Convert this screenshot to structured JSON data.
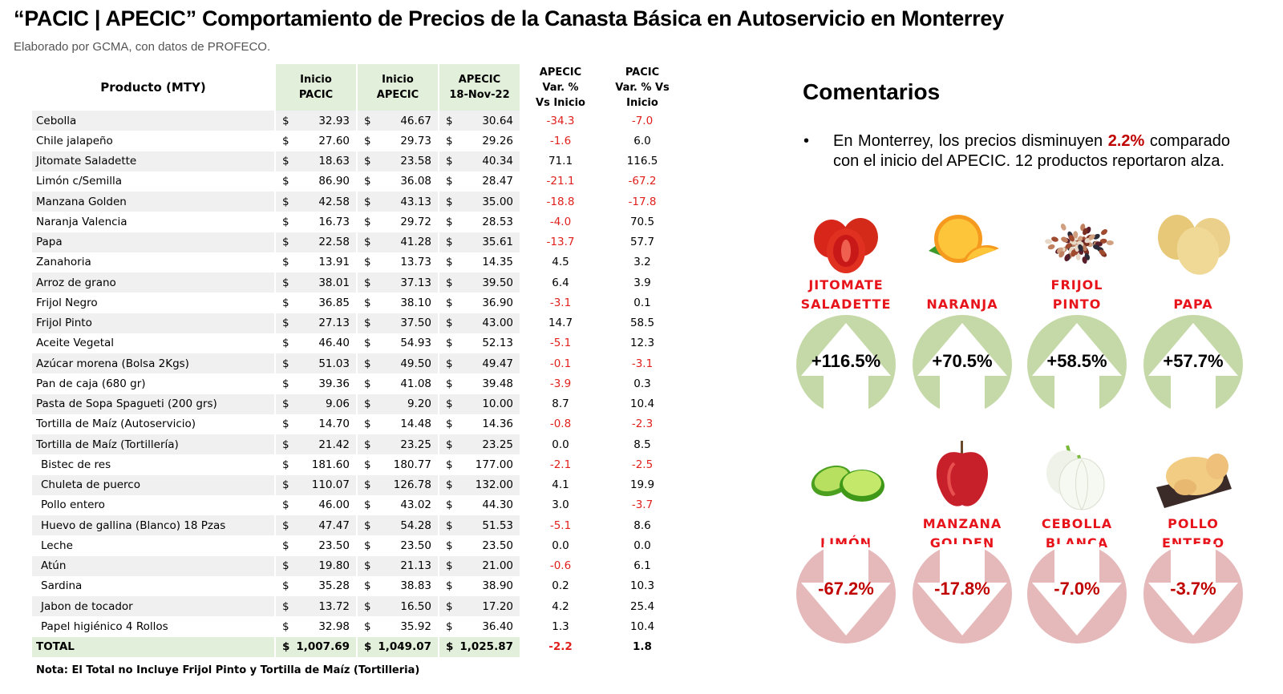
{
  "header": {
    "title": "“PACIC | APECIC” Comportamiento de Precios de la Canasta Básica en Autoservicio en Monterrey",
    "subtitle": "Elaborado por GCMA, con datos de PROFECO."
  },
  "table": {
    "columns": {
      "product": "Producto (MTY)",
      "inicio_pacic": [
        "Inicio",
        "PACIC"
      ],
      "inicio_apecic": [
        "Inicio",
        "APECIC"
      ],
      "apecic_date": [
        "APECIC",
        "18-Nov-22"
      ],
      "var_apecic": [
        "APECIC",
        "Var. %",
        "Vs  Inicio"
      ],
      "var_pacic": [
        "PACIC",
        "Var. % Vs",
        "Inicio"
      ]
    },
    "currency": "$",
    "rows": [
      {
        "name": "Cebolla",
        "pacic": "32.93",
        "apecic": "46.67",
        "nov": "30.64",
        "var_apecic": "-34.3",
        "var_pacic": "-7.0"
      },
      {
        "name": "Chile jalapeño",
        "pacic": "27.60",
        "apecic": "29.73",
        "nov": "29.26",
        "var_apecic": "-1.6",
        "var_pacic": "6.0"
      },
      {
        "name": "Jitomate Saladette",
        "pacic": "18.63",
        "apecic": "23.58",
        "nov": "40.34",
        "var_apecic": "71.1",
        "var_pacic": "116.5"
      },
      {
        "name": "Limón c/Semilla",
        "pacic": "86.90",
        "apecic": "36.08",
        "nov": "28.47",
        "var_apecic": "-21.1",
        "var_pacic": "-67.2"
      },
      {
        "name": "Manzana Golden",
        "pacic": "42.58",
        "apecic": "43.13",
        "nov": "35.00",
        "var_apecic": "-18.8",
        "var_pacic": "-17.8"
      },
      {
        "name": "Naranja Valencia",
        "pacic": "16.73",
        "apecic": "29.72",
        "nov": "28.53",
        "var_apecic": "-4.0",
        "var_pacic": "70.5"
      },
      {
        "name": "Papa",
        "pacic": "22.58",
        "apecic": "41.28",
        "nov": "35.61",
        "var_apecic": "-13.7",
        "var_pacic": "57.7"
      },
      {
        "name": "Zanahoria",
        "pacic": "13.91",
        "apecic": "13.73",
        "nov": "14.35",
        "var_apecic": "4.5",
        "var_pacic": "3.2"
      },
      {
        "name": "Arroz de grano",
        "pacic": "38.01",
        "apecic": "37.13",
        "nov": "39.50",
        "var_apecic": "6.4",
        "var_pacic": "3.9"
      },
      {
        "name": "Frijol Negro",
        "pacic": "36.85",
        "apecic": "38.10",
        "nov": "36.90",
        "var_apecic": "-3.1",
        "var_pacic": "0.1"
      },
      {
        "name": "Frijol Pinto",
        "pacic": "27.13",
        "apecic": "37.50",
        "nov": "43.00",
        "var_apecic": "14.7",
        "var_pacic": "58.5"
      },
      {
        "name": "Aceite Vegetal",
        "pacic": "46.40",
        "apecic": "54.93",
        "nov": "52.13",
        "var_apecic": "-5.1",
        "var_pacic": "12.3"
      },
      {
        "name": "Azúcar morena (Bolsa 2Kgs)",
        "pacic": "51.03",
        "apecic": "49.50",
        "nov": "49.47",
        "var_apecic": "-0.1",
        "var_pacic": "-3.1"
      },
      {
        "name": "Pan de caja (680 gr)",
        "pacic": "39.36",
        "apecic": "41.08",
        "nov": "39.48",
        "var_apecic": "-3.9",
        "var_pacic": "0.3"
      },
      {
        "name": "Pasta de Sopa Spagueti (200 grs)",
        "pacic": "9.06",
        "apecic": "9.20",
        "nov": "10.00",
        "var_apecic": "8.7",
        "var_pacic": "10.4"
      },
      {
        "name": "Tortilla de Maíz (Autoservicio)",
        "pacic": "14.70",
        "apecic": "14.48",
        "nov": "14.36",
        "var_apecic": "-0.8",
        "var_pacic": "-2.3"
      },
      {
        "name": "Tortilla de Maíz (Tortillería)",
        "pacic": "21.42",
        "apecic": "23.25",
        "nov": "23.25",
        "var_apecic": "0.0",
        "var_pacic": "8.5"
      },
      {
        "name": "Bistec de res",
        "pacic": "181.60",
        "apecic": "180.77",
        "nov": "177.00",
        "var_apecic": "-2.1",
        "var_pacic": "-2.5",
        "indent": true
      },
      {
        "name": "Chuleta de puerco",
        "pacic": "110.07",
        "apecic": "126.78",
        "nov": "132.00",
        "var_apecic": "4.1",
        "var_pacic": "19.9",
        "indent": true
      },
      {
        "name": "Pollo entero",
        "pacic": "46.00",
        "apecic": "43.02",
        "nov": "44.30",
        "var_apecic": "3.0",
        "var_pacic": "-3.7",
        "indent": true
      },
      {
        "name": "Huevo de gallina (Blanco) 18 Pzas",
        "pacic": "47.47",
        "apecic": "54.28",
        "nov": "51.53",
        "var_apecic": "-5.1",
        "var_pacic": "8.6",
        "indent": true
      },
      {
        "name": "Leche",
        "pacic": "23.50",
        "apecic": "23.50",
        "nov": "23.50",
        "var_apecic": "0.0",
        "var_pacic": "0.0",
        "indent": true
      },
      {
        "name": "Atún",
        "pacic": "19.80",
        "apecic": "21.13",
        "nov": "21.00",
        "var_apecic": "-0.6",
        "var_pacic": "6.1",
        "indent": true
      },
      {
        "name": "Sardina",
        "pacic": "35.28",
        "apecic": "38.83",
        "nov": "38.90",
        "var_apecic": "0.2",
        "var_pacic": "10.3",
        "indent": true
      },
      {
        "name": "Jabon de tocador",
        "pacic": "13.72",
        "apecic": "16.50",
        "nov": "17.20",
        "var_apecic": "4.2",
        "var_pacic": "25.4",
        "indent": true
      },
      {
        "name": "Papel higiénico 4 Rollos",
        "pacic": "32.98",
        "apecic": "35.92",
        "nov": "36.40",
        "var_apecic": "1.3",
        "var_pacic": "10.4",
        "indent": true
      }
    ],
    "total": {
      "name": "TOTAL",
      "pacic": "1,007.69",
      "apecic": "1,049.07",
      "nov": "1,025.87",
      "var_apecic": "-2.2",
      "var_pacic": "1.8"
    },
    "note": "Nota: El Total no Incluye Frijol Pinto y Tortilla de Maíz (Tortilleria)"
  },
  "comments": {
    "title": "Comentarios",
    "bullet": "•",
    "text_before": "En Monterrey, los precios disminuyen ",
    "highlight": "2.2%",
    "text_after": " comparado con el inicio del APECIC. 12 productos reportaron alza."
  },
  "highlights": {
    "increases": [
      {
        "label": [
          "JITOMATE",
          "SALADETTE"
        ],
        "value": "+116.5%",
        "icon": "tomato-icon"
      },
      {
        "label": [
          "NARANJA"
        ],
        "value": "+70.5%",
        "icon": "orange-icon"
      },
      {
        "label": [
          "FRIJOL",
          "PINTO"
        ],
        "value": "+58.5%",
        "icon": "beans-icon"
      },
      {
        "label": [
          "PAPA"
        ],
        "value": "+57.7%",
        "icon": "potato-icon"
      }
    ],
    "decreases": [
      {
        "label": [
          "LIMÓN"
        ],
        "value": "-67.2%",
        "icon": "lime-icon"
      },
      {
        "label": [
          "MANZANA",
          "GOLDEN"
        ],
        "value": "-17.8%",
        "icon": "apple-icon"
      },
      {
        "label": [
          "CEBOLLA",
          "BLANCA"
        ],
        "value": "-7.0%",
        "icon": "onion-icon"
      },
      {
        "label": [
          "POLLO",
          "ENTERO"
        ],
        "value": "-3.7%",
        "icon": "chicken-icon"
      }
    ]
  },
  "colors": {
    "negative": "#e0201c",
    "header_green": "#e2efda",
    "row_gray": "#f0f0f0",
    "up_circle": "#c5d9a8",
    "down_circle": "#e5b8ba",
    "label_red": "#e8141c",
    "highlight_red": "#c00000"
  }
}
